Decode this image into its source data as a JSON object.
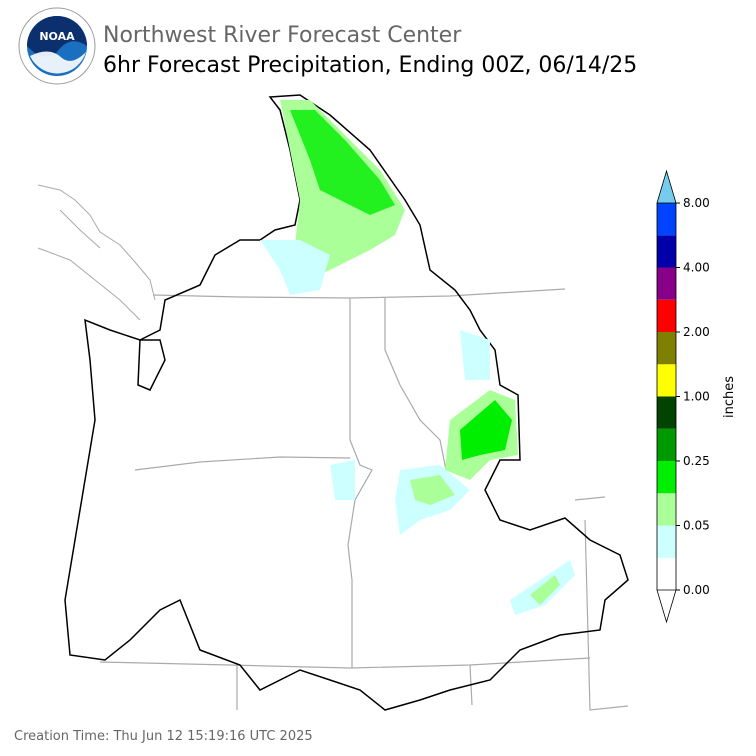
{
  "header": {
    "title": "Northwest River Forecast Center",
    "subtitle": "6hr Forecast Precipitation, Ending 00Z, 06/14/25",
    "logo_text": "NOAA"
  },
  "colorbar": {
    "label": "inches",
    "ticks": [
      "0.00",
      "0.05",
      "0.25",
      "1.00",
      "2.00",
      "4.00",
      "8.00"
    ],
    "under_color": "#ffffff",
    "colors": [
      "#ffffff",
      "#ccffff",
      "#aaff99",
      "#00ee00",
      "#009900",
      "#004400",
      "#ffff00",
      "#808000",
      "#ff0000",
      "#880088",
      "#0000aa",
      "#0044ff"
    ],
    "over_color": "#77ccee"
  },
  "footer": {
    "creation_time": "Creation Time: Thu Jun 12 15:19:16 UTC 2025"
  }
}
